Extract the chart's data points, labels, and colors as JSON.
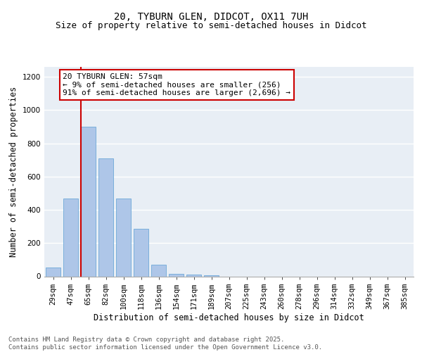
{
  "title_line1": "20, TYBURN GLEN, DIDCOT, OX11 7UH",
  "title_line2": "Size of property relative to semi-detached houses in Didcot",
  "xlabel": "Distribution of semi-detached houses by size in Didcot",
  "ylabel": "Number of semi-detached properties",
  "categories": [
    "29sqm",
    "47sqm",
    "65sqm",
    "82sqm",
    "100sqm",
    "118sqm",
    "136sqm",
    "154sqm",
    "171sqm",
    "189sqm",
    "207sqm",
    "225sqm",
    "243sqm",
    "260sqm",
    "278sqm",
    "296sqm",
    "314sqm",
    "332sqm",
    "349sqm",
    "367sqm",
    "385sqm"
  ],
  "values": [
    55,
    470,
    900,
    710,
    470,
    285,
    70,
    15,
    10,
    5,
    0,
    0,
    0,
    0,
    0,
    0,
    0,
    0,
    0,
    0,
    0
  ],
  "bar_color": "#aec6e8",
  "bar_edge_color": "#5a9fd4",
  "vline_color": "#cc0000",
  "vline_x_index": 1.575,
  "annotation_text": "20 TYBURN GLEN: 57sqm\n← 9% of semi-detached houses are smaller (256)\n91% of semi-detached houses are larger (2,696) →",
  "annotation_box_color": "#cc0000",
  "ylim": [
    0,
    1260
  ],
  "yticks": [
    0,
    200,
    400,
    600,
    800,
    1000,
    1200
  ],
  "background_color": "#e8eef5",
  "grid_color": "#ffffff",
  "footer_text": "Contains HM Land Registry data © Crown copyright and database right 2025.\nContains public sector information licensed under the Open Government Licence v3.0.",
  "title_fontsize": 10,
  "subtitle_fontsize": 9,
  "axis_label_fontsize": 8.5,
  "tick_fontsize": 7.5,
  "annotation_fontsize": 8,
  "footer_fontsize": 6.5
}
